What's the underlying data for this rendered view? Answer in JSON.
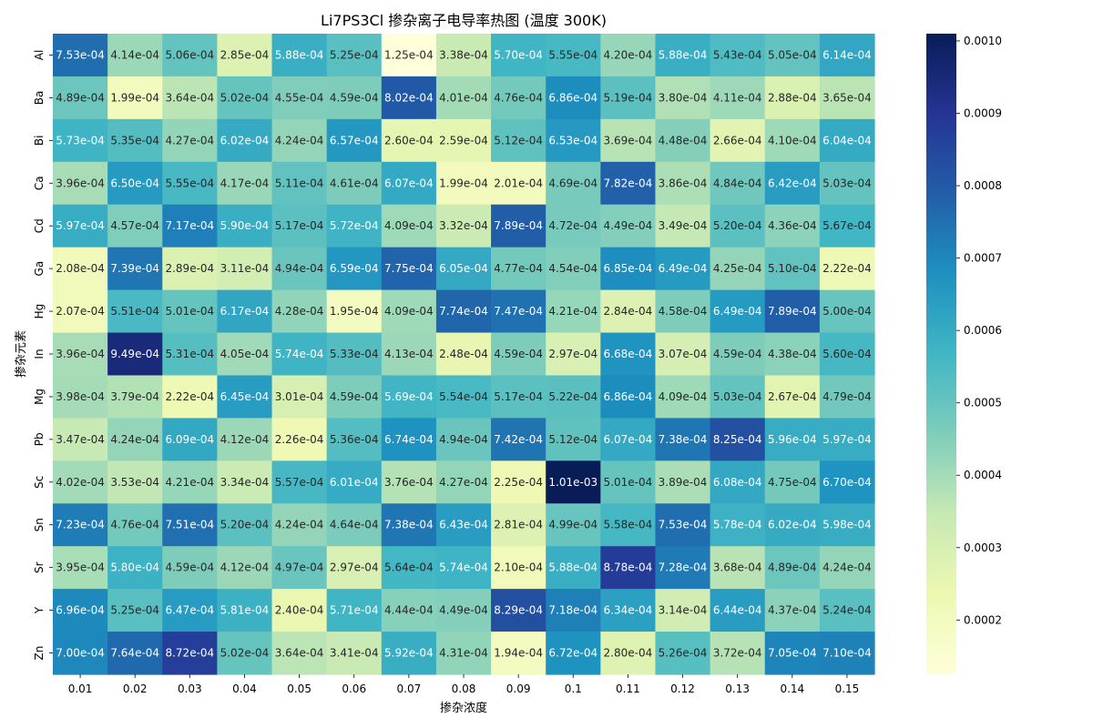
{
  "chart_data": {
    "type": "heatmap",
    "title": "Li7PS3Cl 掺杂离子电导率热图 (温度 300K)",
    "xlabel": "掺杂浓度",
    "ylabel": "掺杂元素",
    "x_categories": [
      "0.01",
      "0.02",
      "0.03",
      "0.04",
      "0.05",
      "0.06",
      "0.07",
      "0.08",
      "0.09",
      "0.1",
      "0.11",
      "0.12",
      "0.13",
      "0.14",
      "0.15"
    ],
    "y_categories": [
      "Al",
      "Ba",
      "Bi",
      "Ca",
      "Cd",
      "Ga",
      "Hg",
      "In",
      "Mg",
      "Pb",
      "Sc",
      "Sn",
      "Sr",
      "Y",
      "Zn"
    ],
    "colorscale": "YlGnBu",
    "vmin": 0.000125,
    "vmax": 0.00101,
    "colorbar_ticks": [
      "0.0002",
      "0.0003",
      "0.0004",
      "0.0005",
      "0.0006",
      "0.0007",
      "0.0008",
      "0.0009",
      "0.0010"
    ],
    "values": [
      [
        "7.53e-04",
        "4.14e-04",
        "5.06e-04",
        "2.85e-04",
        "5.88e-04",
        "5.25e-04",
        "1.25e-04",
        "3.38e-04",
        "5.70e-04",
        "5.55e-04",
        "4.20e-04",
        "5.88e-04",
        "5.43e-04",
        "5.05e-04",
        "6.14e-04"
      ],
      [
        "4.89e-04",
        "1.99e-04",
        "3.64e-04",
        "5.02e-04",
        "4.55e-04",
        "4.59e-04",
        "8.02e-04",
        "4.01e-04",
        "4.76e-04",
        "6.86e-04",
        "5.19e-04",
        "3.80e-04",
        "4.11e-04",
        "2.88e-04",
        "3.65e-04"
      ],
      [
        "5.73e-04",
        "5.35e-04",
        "4.27e-04",
        "6.02e-04",
        "4.24e-04",
        "6.57e-04",
        "2.60e-04",
        "2.59e-04",
        "5.12e-04",
        "6.53e-04",
        "3.69e-04",
        "4.48e-04",
        "2.66e-04",
        "4.10e-04",
        "6.04e-04"
      ],
      [
        "3.96e-04",
        "6.50e-04",
        "5.55e-04",
        "4.17e-04",
        "5.11e-04",
        "4.61e-04",
        "6.07e-04",
        "1.99e-04",
        "2.01e-04",
        "4.69e-04",
        "7.82e-04",
        "3.86e-04",
        "4.84e-04",
        "6.42e-04",
        "5.03e-04"
      ],
      [
        "5.97e-04",
        "4.57e-04",
        "7.17e-04",
        "5.90e-04",
        "5.17e-04",
        "5.72e-04",
        "4.09e-04",
        "3.32e-04",
        "7.89e-04",
        "4.72e-04",
        "4.49e-04",
        "3.49e-04",
        "5.20e-04",
        "4.36e-04",
        "5.67e-04"
      ],
      [
        "2.08e-04",
        "7.39e-04",
        "2.89e-04",
        "3.11e-04",
        "4.94e-04",
        "6.59e-04",
        "7.75e-04",
        "6.05e-04",
        "4.77e-04",
        "4.54e-04",
        "6.85e-04",
        "6.49e-04",
        "4.25e-04",
        "5.10e-04",
        "2.22e-04"
      ],
      [
        "2.07e-04",
        "5.51e-04",
        "5.01e-04",
        "6.17e-04",
        "4.28e-04",
        "1.95e-04",
        "4.09e-04",
        "7.74e-04",
        "7.47e-04",
        "4.21e-04",
        "2.84e-04",
        "4.58e-04",
        "6.49e-04",
        "7.89e-04",
        "5.00e-04"
      ],
      [
        "3.96e-04",
        "9.49e-04",
        "5.31e-04",
        "4.05e-04",
        "5.74e-04",
        "5.33e-04",
        "4.13e-04",
        "2.48e-04",
        "4.59e-04",
        "2.97e-04",
        "6.68e-04",
        "3.07e-04",
        "4.59e-04",
        "4.38e-04",
        "5.60e-04"
      ],
      [
        "3.98e-04",
        "3.79e-04",
        "2.22e-04",
        "6.45e-04",
        "3.01e-04",
        "4.59e-04",
        "5.69e-04",
        "5.54e-04",
        "5.17e-04",
        "5.22e-04",
        "6.86e-04",
        "4.09e-04",
        "5.03e-04",
        "2.67e-04",
        "4.79e-04"
      ],
      [
        "3.47e-04",
        "4.24e-04",
        "6.09e-04",
        "4.12e-04",
        "2.26e-04",
        "5.36e-04",
        "6.74e-04",
        "4.94e-04",
        "7.42e-04",
        "5.12e-04",
        "6.07e-04",
        "7.38e-04",
        "8.25e-04",
        "5.96e-04",
        "5.97e-04"
      ],
      [
        "4.02e-04",
        "3.53e-04",
        "4.21e-04",
        "3.34e-04",
        "5.57e-04",
        "6.01e-04",
        "3.76e-04",
        "4.27e-04",
        "2.25e-04",
        "1.01e-03",
        "5.01e-04",
        "3.89e-04",
        "6.08e-04",
        "4.75e-04",
        "6.70e-04"
      ],
      [
        "7.23e-04",
        "4.76e-04",
        "7.51e-04",
        "5.20e-04",
        "4.24e-04",
        "4.64e-04",
        "7.38e-04",
        "6.43e-04",
        "2.81e-04",
        "4.99e-04",
        "5.58e-04",
        "7.53e-04",
        "5.78e-04",
        "6.02e-04",
        "5.98e-04"
      ],
      [
        "3.95e-04",
        "5.80e-04",
        "4.59e-04",
        "4.12e-04",
        "4.97e-04",
        "2.97e-04",
        "5.64e-04",
        "5.74e-04",
        "2.10e-04",
        "5.88e-04",
        "8.78e-04",
        "7.28e-04",
        "3.68e-04",
        "4.89e-04",
        "4.24e-04"
      ],
      [
        "6.96e-04",
        "5.25e-04",
        "6.47e-04",
        "5.81e-04",
        "2.40e-04",
        "5.71e-04",
        "4.44e-04",
        "4.49e-04",
        "8.29e-04",
        "7.18e-04",
        "6.34e-04",
        "3.14e-04",
        "6.44e-04",
        "4.37e-04",
        "5.24e-04"
      ],
      [
        "7.00e-04",
        "7.64e-04",
        "8.72e-04",
        "5.02e-04",
        "3.64e-04",
        "3.41e-04",
        "5.92e-04",
        "4.31e-04",
        "1.94e-04",
        "6.72e-04",
        "2.80e-04",
        "5.26e-04",
        "3.72e-04",
        "7.05e-04",
        "7.10e-04"
      ]
    ]
  }
}
